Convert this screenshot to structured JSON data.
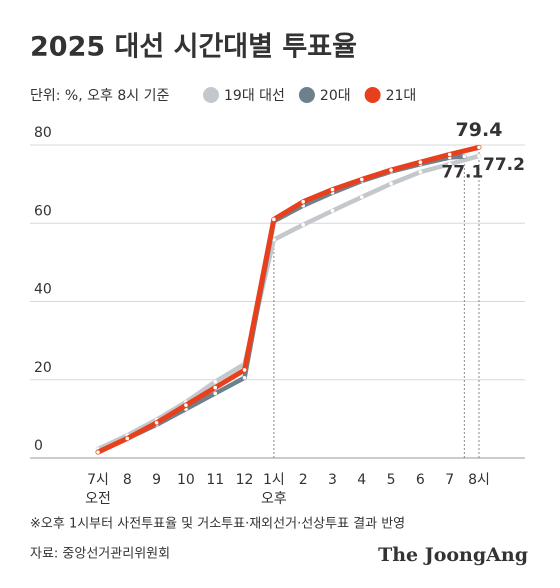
{
  "chart_data": {
    "type": "line",
    "title": "2025 대선 시간대별 투표율",
    "subtitle": "단위: %, 오후 8시 기준",
    "xlim": [
      7,
      20
    ],
    "xticks": [
      {
        "value": 7,
        "label": "7시"
      },
      8,
      9,
      10,
      11,
      12,
      {
        "value": 13,
        "label": "1시"
      },
      {
        "value": 14,
        "label": "2"
      },
      {
        "value": 15,
        "label": "3"
      },
      {
        "value": 16,
        "label": "4"
      },
      {
        "value": 17,
        "label": "5"
      },
      {
        "value": 18,
        "label": "6"
      },
      {
        "value": 19,
        "label": "7"
      },
      {
        "value": 20,
        "label": "8시"
      }
    ],
    "period_labels": [
      {
        "value": 7,
        "label": "오전"
      },
      {
        "value": 13,
        "label": "오후"
      }
    ],
    "ylim": [
      0,
      80
    ],
    "yticks": [
      0,
      20,
      40,
      60,
      80
    ],
    "grid": true,
    "series": [
      {
        "name": "19대 대선",
        "color": "#c4c8cc",
        "x": [
          7,
          8,
          9,
          10,
          11,
          12,
          13,
          14,
          15,
          16,
          17,
          18,
          19,
          20
        ],
        "values": [
          2.3,
          5.8,
          9.8,
          14.3,
          19.5,
          24.0,
          55.8,
          59.6,
          63.2,
          66.7,
          70.1,
          73.1,
          75.1,
          77.2
        ]
      },
      {
        "name": "20대",
        "color": "#6e808b",
        "x": [
          7,
          8,
          9,
          10,
          11,
          12,
          13,
          14,
          15,
          16,
          17,
          18,
          19,
          19.5
        ],
        "values": [
          1.6,
          5.0,
          8.5,
          12.5,
          16.5,
          20.5,
          60.5,
          64.5,
          67.8,
          70.8,
          73.2,
          75.1,
          76.8,
          77.1
        ]
      },
      {
        "name": "21대",
        "color": "#e8401c",
        "x": [
          7,
          8,
          9,
          10,
          11,
          12,
          13,
          14,
          15,
          16,
          17,
          18,
          19,
          20
        ],
        "values": [
          1.5,
          5.0,
          9.0,
          13.5,
          18.0,
          22.5,
          61.0,
          65.5,
          68.6,
          71.2,
          73.6,
          75.6,
          77.6,
          79.4
        ]
      }
    ],
    "footnote": "※오후 1시부터 사전투표율 및 거소투표·재외선거·선상투표 결과 반영",
    "source": "자료: 중앙선거관리위원회",
    "brand": "The JoongAng"
  }
}
